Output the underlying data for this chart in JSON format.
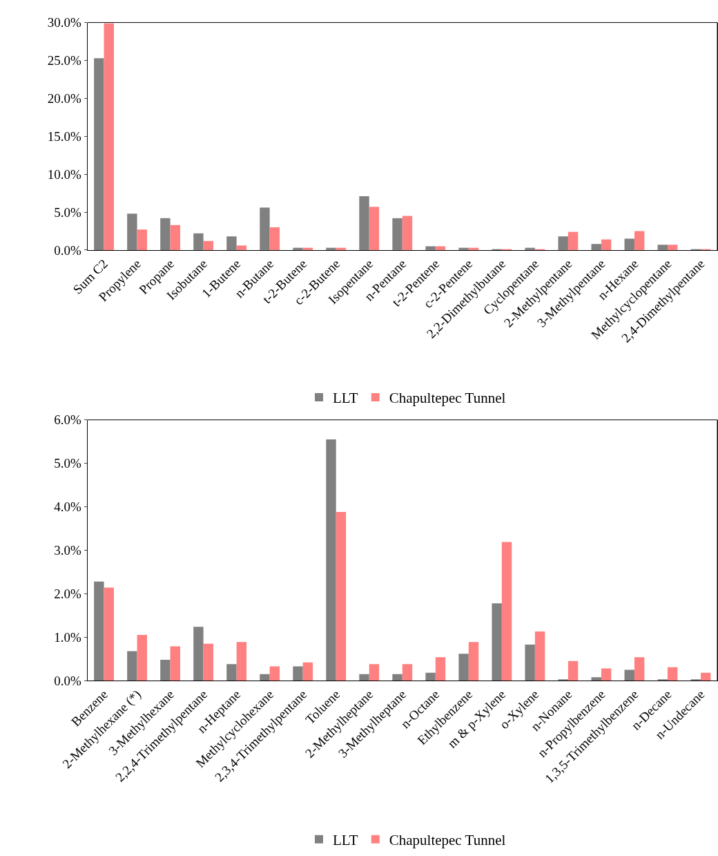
{
  "chart_data": [
    {
      "type": "bar",
      "categories": [
        "Sum C2",
        "Propylene",
        "Propane",
        "Isobutane",
        "1-Butene",
        "n-Butane",
        "t-2-Butene",
        "c-2-Butene",
        "Isopentane",
        "n-Pentane",
        "t-2-Pentene",
        "c-2-Pentene",
        "2,2-Dimethylbutane",
        "Cyclopentane",
        "2-Methylpentane",
        "3-Methylpentane",
        "n-Hexane",
        "Methylcyclopentane",
        "2,4-Dimethylpentane"
      ],
      "series": [
        {
          "name": "LLT",
          "color": "#808080",
          "values": [
            25.3,
            4.8,
            4.2,
            2.2,
            1.8,
            5.6,
            0.3,
            0.3,
            7.1,
            4.2,
            0.5,
            0.3,
            0.1,
            0.3,
            1.8,
            0.8,
            1.5,
            0.7,
            0.1
          ]
        },
        {
          "name": "Chapultepec Tunnel",
          "color": "#ff8080",
          "values": [
            29.9,
            2.7,
            3.3,
            1.2,
            0.6,
            3.0,
            0.3,
            0.3,
            5.7,
            4.5,
            0.5,
            0.3,
            0.05,
            0.05,
            2.4,
            1.4,
            2.5,
            0.7,
            0.1
          ]
        }
      ],
      "ylim": [
        0,
        30
      ],
      "yticks": [
        {
          "value": 0,
          "label": "0.0%"
        },
        {
          "value": 5,
          "label": "5.0%"
        },
        {
          "value": 10,
          "label": "10.0%"
        },
        {
          "value": 15,
          "label": "15.0%"
        },
        {
          "value": 20,
          "label": "20.0%"
        },
        {
          "value": 25,
          "label": "25.0%"
        },
        {
          "value": 30,
          "label": "30.0%"
        }
      ],
      "legend": "bottom",
      "grid": false
    },
    {
      "type": "bar",
      "categories": [
        "Benzene",
        "2-Methylhexane (*)",
        "3-Methylhexane",
        "2,2,4-Trimethylpentane",
        "n-Heptane",
        "Methylcyclohexane",
        "2,3,4-Trimethylpentane",
        "Toluene",
        "2-Methylheptane",
        "3-Methylheptane",
        "n-Octane",
        "Ethylbenzene",
        "m & p-Xylene",
        "o-Xylene",
        "n-Nonane",
        "n-Propylbenzene",
        "1,3,5-Trimethylbenzene",
        "n-Decane",
        "n-Undecane"
      ],
      "series": [
        {
          "name": "LLT",
          "color": "#808080",
          "values": [
            2.28,
            0.68,
            0.48,
            1.24,
            0.38,
            0.15,
            0.33,
            5.55,
            0.15,
            0.15,
            0.18,
            0.62,
            1.78,
            0.83,
            0.03,
            0.08,
            0.25,
            0.03,
            0.03
          ]
        },
        {
          "name": "Chapultepec Tunnel",
          "color": "#ff8080",
          "values": [
            2.14,
            1.05,
            0.79,
            0.85,
            0.89,
            0.33,
            0.42,
            3.88,
            0.38,
            0.38,
            0.54,
            0.89,
            3.19,
            1.13,
            0.45,
            0.28,
            0.54,
            0.31,
            0.18
          ]
        }
      ],
      "ylim": [
        0,
        6
      ],
      "yticks": [
        {
          "value": 0,
          "label": "0.0%"
        },
        {
          "value": 1,
          "label": "1.0%"
        },
        {
          "value": 2,
          "label": "2.0%"
        },
        {
          "value": 3,
          "label": "3.0%"
        },
        {
          "value": 4,
          "label": "4.0%"
        },
        {
          "value": 5,
          "label": "5.0%"
        },
        {
          "value": 6,
          "label": "6.0%"
        }
      ],
      "legend": "bottom",
      "grid": false
    }
  ]
}
